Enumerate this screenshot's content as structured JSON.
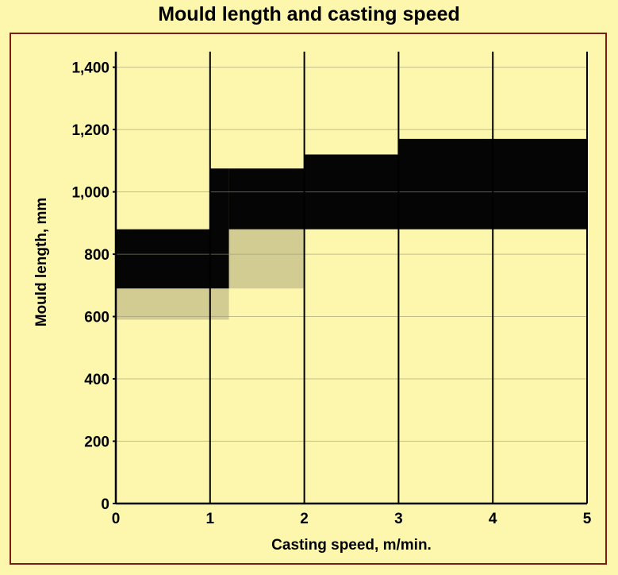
{
  "chart_data": {
    "type": "area",
    "title": "Mould length and casting speed",
    "xlabel": "Casting speed, m/min.",
    "ylabel": "Mould length, mm",
    "xlim": [
      0,
      5
    ],
    "ylim": [
      0,
      1450
    ],
    "x_ticks": [
      "0",
      "1",
      "2",
      "3",
      "4",
      "5"
    ],
    "y_ticks": [
      "0",
      "200",
      "400",
      "600",
      "800",
      "1,000",
      "1,200",
      "1,400"
    ],
    "x_tick_values": [
      0,
      1,
      2,
      3,
      4,
      5
    ],
    "y_tick_values": [
      0,
      200,
      400,
      600,
      800,
      1000,
      1200,
      1400
    ],
    "grid": true,
    "bands": [
      {
        "shade": "light",
        "x0": 0,
        "x1": 1.2,
        "y0": 590,
        "y1": 690
      },
      {
        "shade": "light",
        "x0": 1.2,
        "x1": 2,
        "y0": 690,
        "y1": 880
      },
      {
        "shade": "dark",
        "x0": 0,
        "x1": 1,
        "y0": 690,
        "y1": 880
      },
      {
        "shade": "dark",
        "x0": 1,
        "x1": 1.2,
        "y0": 690,
        "y1": 1075
      },
      {
        "shade": "dark",
        "x0": 1.2,
        "x1": 2,
        "y0": 880,
        "y1": 1075
      },
      {
        "shade": "dark",
        "x0": 2,
        "x1": 3,
        "y0": 880,
        "y1": 1120
      },
      {
        "shade": "dark",
        "x0": 3,
        "x1": 5,
        "y0": 880,
        "y1": 1170
      }
    ],
    "colors": {
      "dark": "#050505",
      "light": "#d2cc93",
      "background": "#fdf7ad",
      "border": "#7a1e12"
    }
  }
}
